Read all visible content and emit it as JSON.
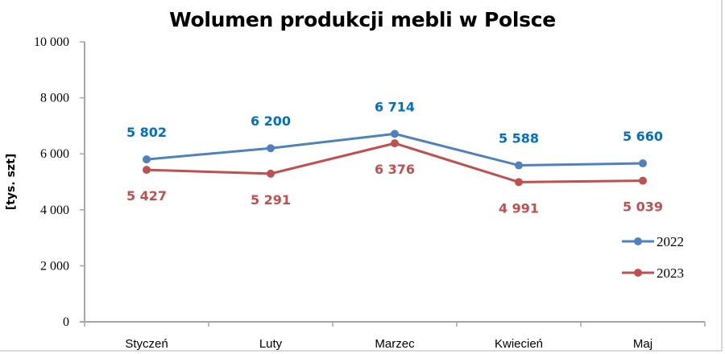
{
  "chart_data": {
    "type": "line",
    "title": "Wolumen produkcji mebli w Polsce",
    "xlabel": "",
    "ylabel": "[tys. szt]",
    "categories": [
      "Styczeń",
      "Luty",
      "Marzec",
      "Kwiecień",
      "Maj"
    ],
    "series": [
      {
        "name": "2022",
        "color": "#4f81bd",
        "label_color": "#0070c0",
        "values": [
          5802,
          6200,
          6714,
          5588,
          5660
        ],
        "labels": [
          "5 802",
          "6 200",
          "6 714",
          "5 588",
          "5 660"
        ],
        "label_position": "above"
      },
      {
        "name": "2023",
        "color": "#c0504d",
        "label_color": "#c0504d",
        "values": [
          5427,
          5291,
          6376,
          4991,
          5039
        ],
        "labels": [
          "5 427",
          "5 291",
          "6 376",
          "4 991",
          "5 039"
        ],
        "label_position": "below"
      }
    ],
    "ylim": [
      0,
      10000
    ],
    "yticks": [
      0,
      2000,
      4000,
      6000,
      8000,
      10000
    ],
    "ytick_labels": [
      "0",
      "2 000",
      "4 000",
      "6 000",
      "8 000",
      "10 000"
    ],
    "grid": false,
    "legend_position": "right"
  }
}
